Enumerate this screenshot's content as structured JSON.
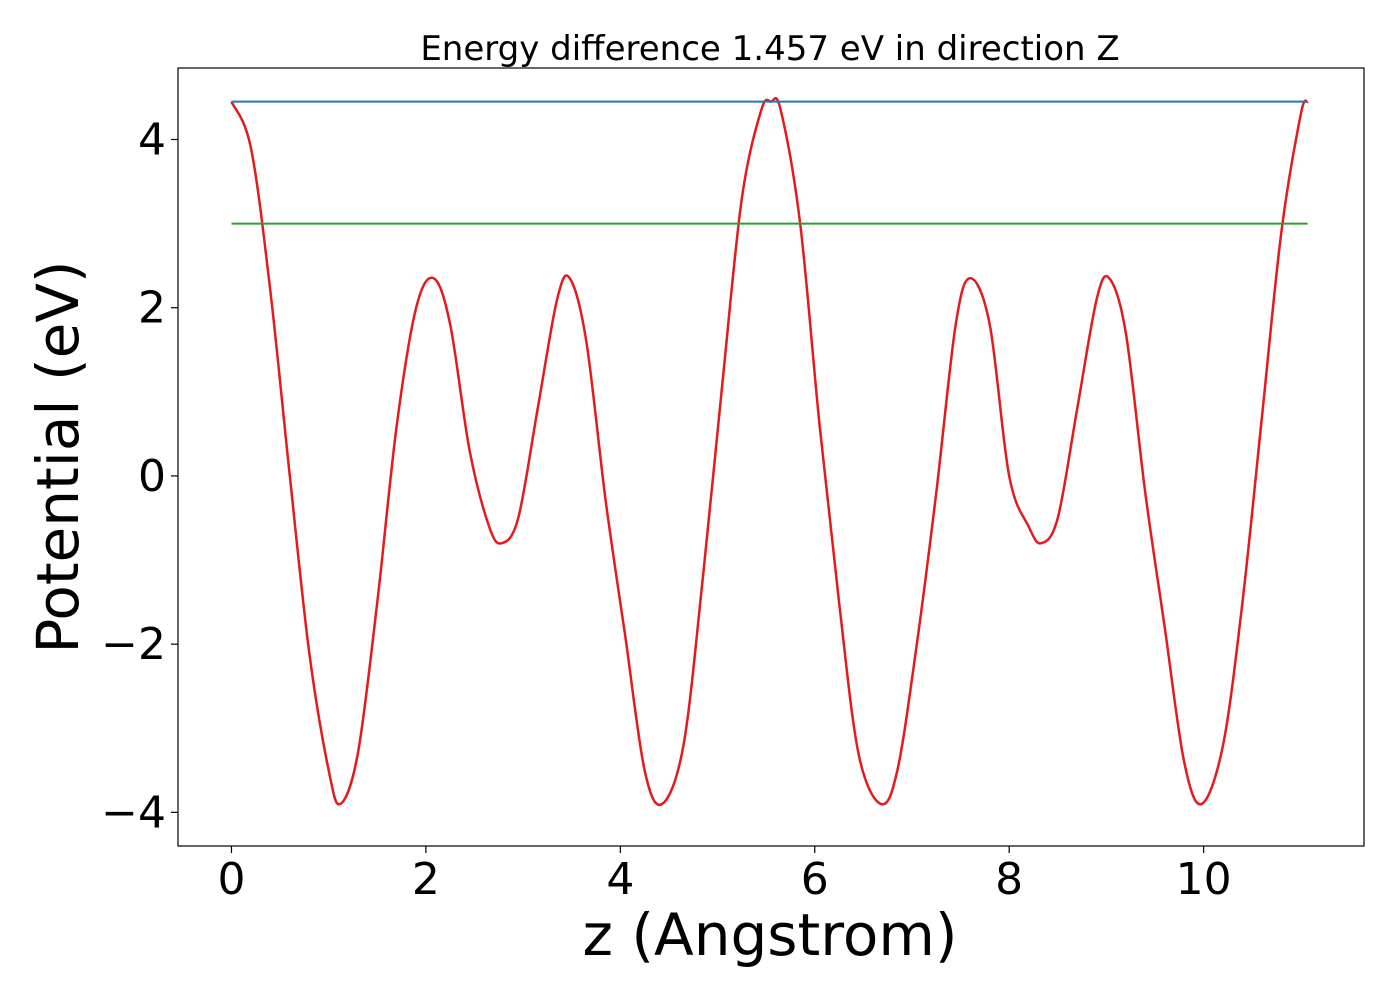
{
  "chart_data": {
    "type": "line",
    "title": "Energy difference 1.457 eV in direction Z",
    "xlabel": "z (Angstrom)",
    "ylabel": "Potential (eV)",
    "xlim": [
      -0.55,
      11.65
    ],
    "ylim": [
      -4.4,
      4.85
    ],
    "xticks": [
      0,
      2,
      4,
      6,
      8,
      10
    ],
    "yticks": [
      -4,
      -2,
      0,
      2,
      4
    ],
    "grid": false,
    "legend": "none",
    "series": [
      {
        "color": "#e41a1c",
        "x": [
          0.0,
          0.2,
          0.4,
          0.6,
          0.8,
          1.0,
          1.12,
          1.3,
          1.5,
          1.7,
          1.9,
          2.08,
          2.25,
          2.45,
          2.65,
          2.78,
          2.95,
          3.15,
          3.35,
          3.48,
          3.65,
          3.85,
          4.05,
          4.25,
          4.43,
          4.65,
          4.85,
          5.05,
          5.25,
          5.45,
          5.55,
          5.65,
          5.85,
          6.05,
          6.25,
          6.45,
          6.68,
          6.85,
          7.05,
          7.25,
          7.45,
          7.6,
          7.8,
          8.0,
          8.2,
          8.33,
          8.5,
          8.7,
          8.9,
          9.03,
          9.2,
          9.4,
          9.6,
          9.8,
          9.98,
          10.2,
          10.4,
          10.6,
          10.8,
          11.0,
          11.07
        ],
        "y": [
          4.45,
          3.9,
          2.2,
          0.0,
          -2.1,
          -3.5,
          -3.9,
          -3.3,
          -1.5,
          0.6,
          2.0,
          2.35,
          1.8,
          0.3,
          -0.6,
          -0.8,
          -0.5,
          0.8,
          2.1,
          2.35,
          1.6,
          -0.3,
          -1.9,
          -3.5,
          -3.9,
          -3.2,
          -1.2,
          1.1,
          3.3,
          4.35,
          4.45,
          4.35,
          3.0,
          0.6,
          -1.5,
          -3.3,
          -3.9,
          -3.5,
          -2.0,
          -0.2,
          1.8,
          2.35,
          1.8,
          0.0,
          -0.6,
          -0.8,
          -0.5,
          0.8,
          2.1,
          2.35,
          1.7,
          -0.2,
          -1.8,
          -3.4,
          -3.9,
          -3.2,
          -1.5,
          0.7,
          2.9,
          4.3,
          4.45
        ]
      },
      {
        "color": "#1f77b4",
        "x": [
          0.0,
          11.07
        ],
        "y": [
          4.45,
          4.45
        ]
      },
      {
        "color": "#2ca02c",
        "x": [
          0.0,
          11.07
        ],
        "y": [
          3.0,
          3.0
        ]
      }
    ]
  }
}
